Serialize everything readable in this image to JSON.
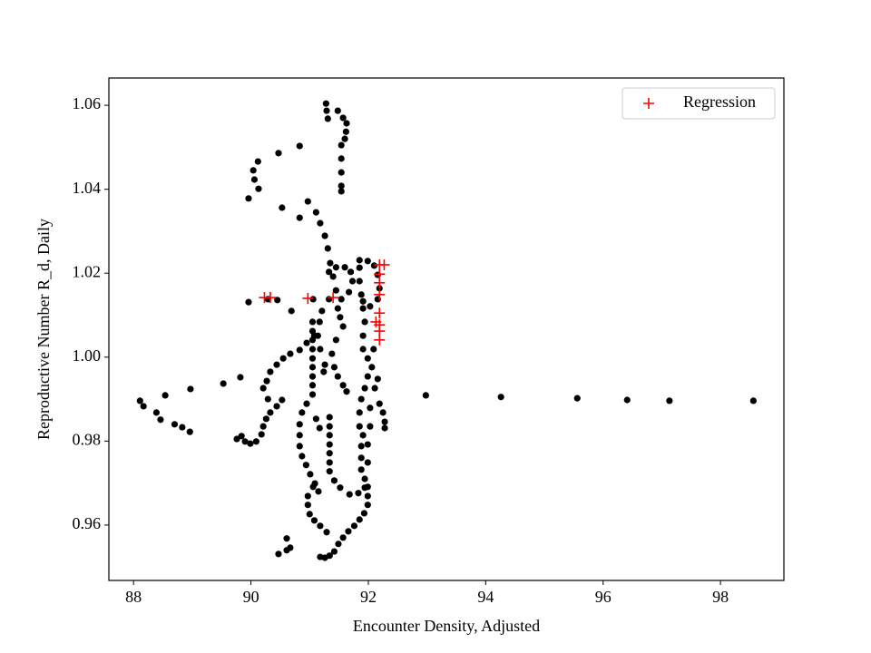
{
  "chart_data": {
    "type": "scatter",
    "x_label": "Encounter Density, Adjusted",
    "y_label": "Reproductive Number R_d, Daily",
    "xlim": [
      87.58,
      99.08
    ],
    "ylim": [
      0.9468,
      1.0665
    ],
    "xticks": [
      88,
      90,
      92,
      94,
      96,
      98
    ],
    "yticks": [
      0.96,
      0.98,
      {
        "value": 1,
        "label": "1.00"
      },
      1.02,
      1.04,
      1.06
    ],
    "legend": "upper right",
    "series": [
      {
        "color": "#000000",
        "marker": "circle",
        "x": [
          92.98,
          94.26,
          95.56,
          96.41,
          97.13,
          98.56,
          88.11,
          88.17,
          88.39,
          88.46,
          88.54,
          88.7,
          88.83,
          88.96,
          88.97,
          89.53,
          89.82,
          89.76,
          89.84,
          89.9,
          89.99,
          90.09,
          90.18,
          90.21,
          90.26,
          90.33,
          90.44,
          90.53,
          90.27,
          90.33,
          90.44,
          90.55,
          90.67,
          90.83,
          90.95,
          91.08,
          90.21,
          90.29,
          89.96,
          90.04,
          90.06,
          90.12,
          90.13,
          90.47,
          90.83,
          90.53,
          90.83,
          90.97,
          91.11,
          91.18,
          91.26,
          91.31,
          91.35,
          91.4,
          91.45,
          89.96,
          90.29,
          90.45,
          90.69,
          91.06,
          91.21,
          91.28,
          91.29,
          91.31,
          91.48,
          91.57,
          91.63,
          91.62,
          91.54,
          91.54,
          91.54,
          91.54,
          91.54,
          91.6,
          91.05,
          91.05,
          91.05,
          91.05,
          91.05,
          91.05,
          91.05,
          91.05,
          91.05,
          90.95,
          90.87,
          90.83,
          90.83,
          90.83,
          90.87,
          90.94,
          91.01,
          91.09,
          91.15,
          91.06,
          90.97,
          90.97,
          91.0,
          91.08,
          91.18,
          91.29,
          91.18,
          91.26,
          91.34,
          91.42,
          91.49,
          91.57,
          91.66,
          91.76,
          91.85,
          91.93,
          91.99,
          91.99,
          91.99,
          90.47,
          90.61,
          90.67,
          90.61,
          91.34,
          91.34,
          91.34,
          91.34,
          91.34,
          91.34,
          91.34,
          91.42,
          91.52,
          91.68,
          91.83,
          91.94,
          91.94,
          91.88,
          91.88,
          91.88,
          91.91,
          91.85,
          91.85,
          91.88,
          91.94,
          91.99,
          92.06,
          91.99,
          91.91,
          91.91,
          91.94,
          91.91,
          91.88,
          91.85,
          91.85,
          91.85,
          91.99,
          92.1,
          92.16,
          92.19,
          92.16,
          92.03,
          91.91,
          92.19,
          92.25,
          92.28,
          92.28,
          92.09,
          92.16,
          92.11,
          92.03,
          92.03,
          91.99,
          91.99,
          91.33,
          91.45,
          91.6,
          91.7,
          91.73,
          91.67,
          91.54,
          91.48,
          91.52,
          91.57,
          91.45,
          91.38,
          91.42,
          91.48,
          91.57,
          91.63,
          91.26,
          91.18,
          91.14,
          91.24,
          91.17,
          91.33,
          91.17,
          91.11
        ],
        "values": [
          0.9909,
          0.9905,
          0.9902,
          0.9898,
          0.9896,
          0.9896,
          0.9896,
          0.9883,
          0.9868,
          0.9851,
          0.9909,
          0.984,
          0.9833,
          0.9822,
          0.9924,
          0.9937,
          0.9952,
          0.9805,
          0.9812,
          0.9799,
          0.9794,
          0.9799,
          0.9816,
          0.9835,
          0.9853,
          0.9868,
          0.9883,
          0.9898,
          0.9943,
          0.9965,
          0.9982,
          0.9997,
          1.0008,
          1.0017,
          1.0034,
          1.0051,
          0.9926,
          0.99,
          1.0378,
          1.0445,
          1.0423,
          1.0466,
          1.0401,
          1.0486,
          1.0503,
          1.0356,
          1.0332,
          1.0371,
          1.0345,
          1.0319,
          1.0289,
          1.0259,
          1.0224,
          1.0192,
          1.0159,
          1.0131,
          1.0138,
          1.0136,
          1.011,
          1.0138,
          1.011,
          1.0604,
          1.0587,
          1.0568,
          1.0587,
          1.057,
          1.0557,
          1.0537,
          1.0505,
          1.0473,
          1.044,
          1.0408,
          1.0395,
          1.052,
          1.0084,
          1.0062,
          1.0041,
          1.0019,
          0.9997,
          0.9976,
          0.9954,
          0.9933,
          0.9911,
          0.9889,
          0.9868,
          0.984,
          0.9814,
          0.9788,
          0.9764,
          0.9743,
          0.9721,
          0.9699,
          0.968,
          0.9691,
          0.9669,
          0.9648,
          0.9626,
          0.9611,
          0.9598,
          0.9583,
          0.9524,
          0.9522,
          0.9527,
          0.9537,
          0.9555,
          0.957,
          0.9585,
          0.9598,
          0.9613,
          0.9628,
          0.9648,
          0.9669,
          0.9691,
          0.9531,
          0.9568,
          0.9546,
          0.954,
          0.9857,
          0.9835,
          0.9814,
          0.9792,
          0.9771,
          0.9749,
          0.9728,
          0.9706,
          0.9689,
          0.9673,
          0.9676,
          0.9689,
          0.971,
          0.9732,
          0.976,
          0.9788,
          0.9814,
          0.9835,
          0.9868,
          0.99,
          0.9926,
          0.9954,
          0.9976,
          0.9997,
          1.0019,
          1.0051,
          1.0084,
          1.0116,
          1.0149,
          1.0181,
          1.0213,
          1.0231,
          1.0229,
          1.0218,
          1.0196,
          1.0164,
          1.0138,
          1.0121,
          1.0133,
          0.9889,
          0.9868,
          0.9846,
          0.9831,
          1.0019,
          0.9948,
          0.9926,
          0.9879,
          0.9835,
          0.9792,
          0.9749,
          1.0203,
          1.0214,
          1.0214,
          1.0203,
          1.0181,
          1.0155,
          1.0138,
          1.0116,
          1.0095,
          1.0073,
          1.0041,
          1.0008,
          0.9976,
          0.9954,
          0.9933,
          0.9918,
          0.9982,
          1.0019,
          1.0051,
          0.9965,
          1.0084,
          1.0138,
          0.9831,
          0.9853
        ]
      },
      {
        "name": "Regression",
        "color": "#ff0000",
        "marker": "plus",
        "x": [
          90.23,
          90.33,
          90.97,
          91.4,
          92.19,
          92.27,
          92.19,
          92.19,
          92.19,
          92.19,
          92.13,
          92.19,
          92.19,
          92.19
        ],
        "values": [
          1.0142,
          1.0142,
          1.014,
          1.0142,
          1.022,
          1.022,
          1.0198,
          1.0177,
          1.0149,
          1.0105,
          1.0084,
          1.0077,
          1.0062,
          1.0041
        ]
      }
    ]
  }
}
